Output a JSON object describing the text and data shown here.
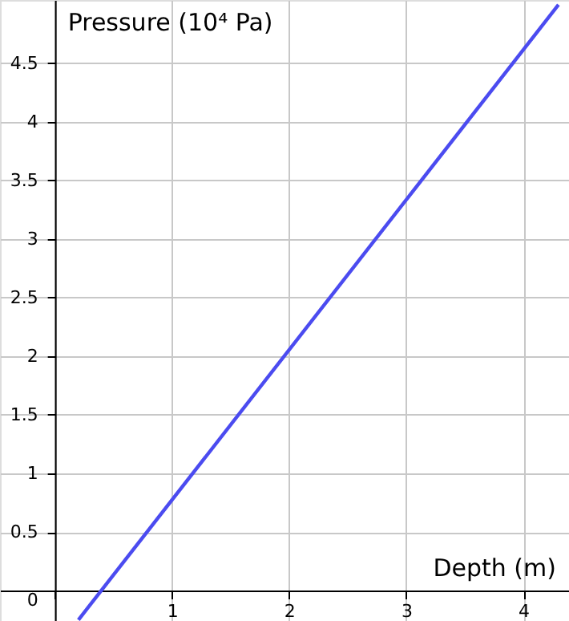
{
  "chart_data": {
    "type": "line",
    "xlabel": "Depth (m)",
    "ylabel": "Pressure (10⁴ Pa)",
    "x": [
      0.2,
      4.3
    ],
    "series": [
      {
        "color": "#4b4bf0",
        "values": [
          -0.25,
          5.0
        ]
      }
    ],
    "xlim": [
      -0.47,
      4.39
    ],
    "ylim": [
      -0.26,
      5.04
    ],
    "xticks": [
      {
        "value": 0,
        "label": null
      },
      1,
      2,
      3,
      4
    ],
    "yticks": [
      0,
      0.5,
      1,
      1.5,
      2,
      2.5,
      3,
      3.5,
      4,
      4.5
    ],
    "grid": true,
    "marker": "none",
    "line_style": "solid"
  }
}
